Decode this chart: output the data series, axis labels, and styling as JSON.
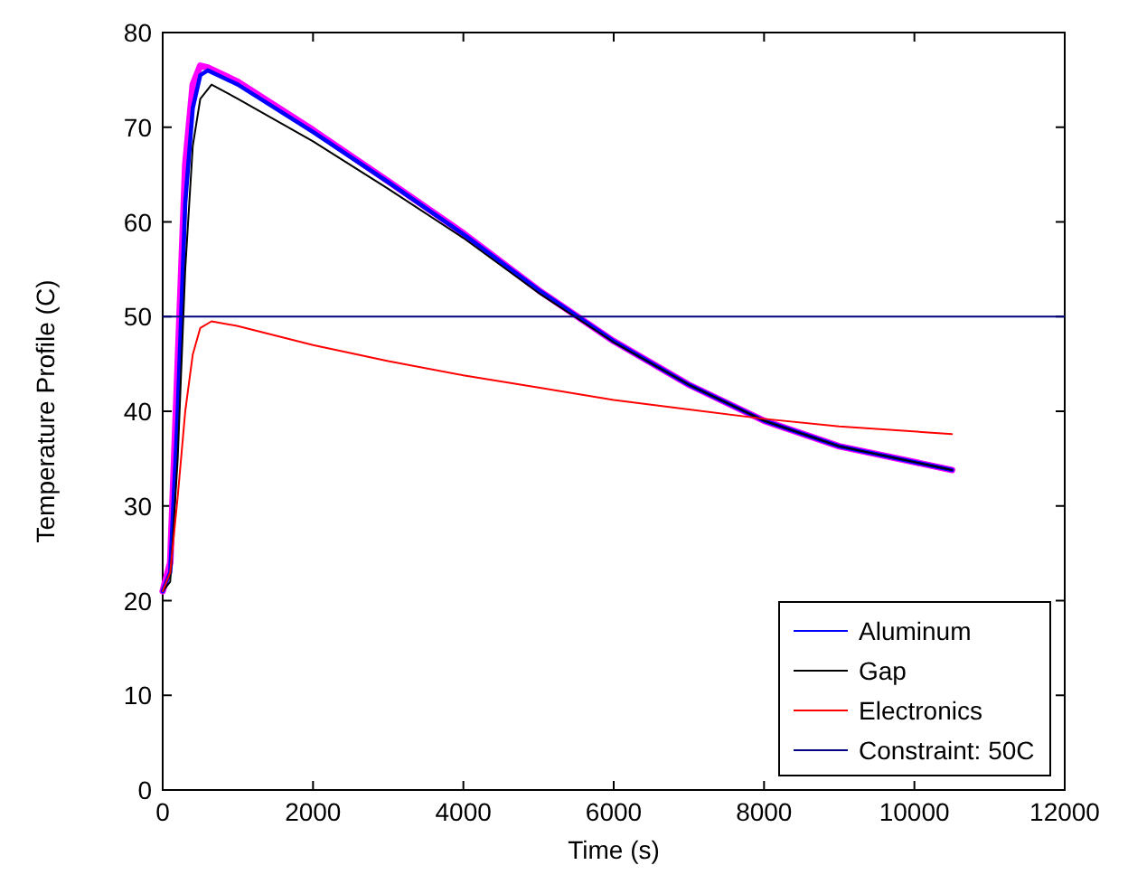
{
  "chart_data": {
    "type": "line",
    "xlabel": "Time (s)",
    "ylabel": "Temperature Profile (C)",
    "xlim": [
      0,
      12000
    ],
    "ylim": [
      0,
      80
    ],
    "xticks": [
      0,
      2000,
      4000,
      6000,
      8000,
      10000,
      12000
    ],
    "yticks": [
      0,
      10,
      20,
      30,
      40,
      50,
      60,
      70,
      80
    ],
    "grid": false,
    "legend": "bottom right",
    "series": [
      {
        "color": "#ff00ff",
        "x": [
          0,
          100,
          200,
          300,
          400,
          500,
          600,
          1000,
          2000,
          3000,
          4000,
          5000,
          6000,
          7000,
          8000,
          9000,
          10500
        ],
        "values": [
          21,
          24,
          45,
          66,
          74.5,
          76.5,
          76.3,
          74.8,
          69.7,
          64.3,
          58.8,
          52.8,
          47.4,
          42.8,
          39,
          36.3,
          33.8
        ]
      },
      {
        "name": "Aluminum",
        "color": "#0000ff",
        "x": [
          0,
          100,
          200,
          300,
          400,
          500,
          600,
          1000,
          2000,
          3000,
          4000,
          5000,
          6000,
          7000,
          8000,
          9000,
          10500
        ],
        "values": [
          21,
          23,
          40,
          62,
          72,
          75.5,
          76,
          74.5,
          69.5,
          64.2,
          58.7,
          52.8,
          47.4,
          42.8,
          39,
          36.3,
          33.8
        ]
      },
      {
        "name": "Gap",
        "color": "#000000",
        "x": [
          0,
          100,
          200,
          300,
          400,
          500,
          650,
          1000,
          2000,
          3000,
          4000,
          5000,
          6000,
          7000,
          8000,
          9000,
          10500
        ],
        "values": [
          21,
          22,
          35,
          55,
          68,
          73,
          74.5,
          73,
          68.5,
          63.5,
          58.3,
          52.5,
          47.3,
          42.8,
          39,
          36.3,
          33.8
        ]
      },
      {
        "name": "Electronics",
        "color": "#ff0000",
        "x": [
          0,
          100,
          200,
          300,
          400,
          500,
          650,
          1000,
          2000,
          3000,
          4000,
          5000,
          6000,
          7000,
          8000,
          9000,
          10500
        ],
        "values": [
          21,
          23,
          31,
          40,
          46,
          48.8,
          49.5,
          49,
          47,
          45.3,
          43.8,
          42.5,
          41.2,
          40.2,
          39.2,
          38.4,
          37.6
        ]
      }
    ],
    "ref_lines": [
      {
        "axis": "y",
        "value": 50,
        "label": "Constraint: 50C",
        "color": "#000080"
      }
    ]
  }
}
